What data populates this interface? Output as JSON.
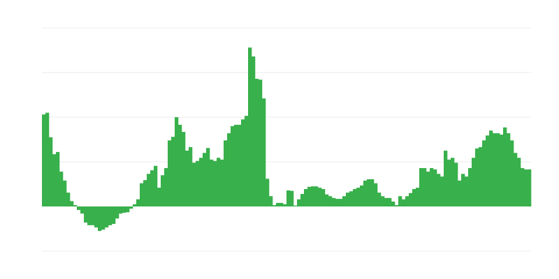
{
  "chart_data": {
    "type": "bar",
    "title": "",
    "xlabel": "",
    "ylabel": "",
    "ylim": [
      -1,
      4
    ],
    "yticks": [
      -1,
      0,
      1,
      2,
      3,
      4
    ],
    "grid": true,
    "color": "#38b04b",
    "grid_color": "#ebebeb",
    "values": [
      2.06,
      2.1,
      1.55,
      1.17,
      1.22,
      0.78,
      0.58,
      0.31,
      0.12,
      0.03,
      -0.08,
      -0.16,
      -0.36,
      -0.42,
      -0.42,
      -0.47,
      -0.55,
      -0.52,
      -0.47,
      -0.42,
      -0.39,
      -0.27,
      -0.16,
      -0.14,
      -0.13,
      -0.05,
      0.05,
      0.16,
      0.52,
      0.59,
      0.73,
      0.81,
      0.91,
      0.42,
      0.7,
      0.86,
      1.48,
      1.56,
      2.0,
      1.83,
      1.67,
      1.25,
      1.33,
      0.98,
      1.02,
      1.09,
      1.2,
      1.31,
      1.05,
      1.02,
      1.09,
      1.05,
      1.48,
      1.64,
      1.8,
      1.83,
      1.83,
      1.95,
      2.03,
      3.56,
      3.36,
      2.86,
      2.84,
      2.42,
      0.62,
      0.23,
      0.03,
      0.08,
      0.08,
      0.05,
      0.36,
      0.35,
      0.02,
      0.16,
      0.28,
      0.39,
      0.44,
      0.45,
      0.45,
      0.42,
      0.39,
      0.27,
      0.23,
      0.19,
      0.17,
      0.17,
      0.23,
      0.31,
      0.34,
      0.39,
      0.42,
      0.47,
      0.58,
      0.61,
      0.61,
      0.52,
      0.31,
      0.23,
      0.19,
      0.19,
      0.11,
      0.03,
      0.23,
      0.16,
      0.23,
      0.3,
      0.39,
      0.42,
      0.86,
      0.86,
      0.78,
      0.86,
      0.83,
      0.73,
      0.67,
      1.25,
      1.05,
      1.09,
      0.98,
      0.58,
      0.73,
      0.67,
      0.86,
      1.09,
      1.3,
      1.33,
      1.48,
      1.59,
      1.7,
      1.64,
      1.64,
      1.61,
      1.77,
      1.64,
      1.48,
      1.2,
      1.09,
      0.86,
      0.83,
      0.83
    ]
  }
}
